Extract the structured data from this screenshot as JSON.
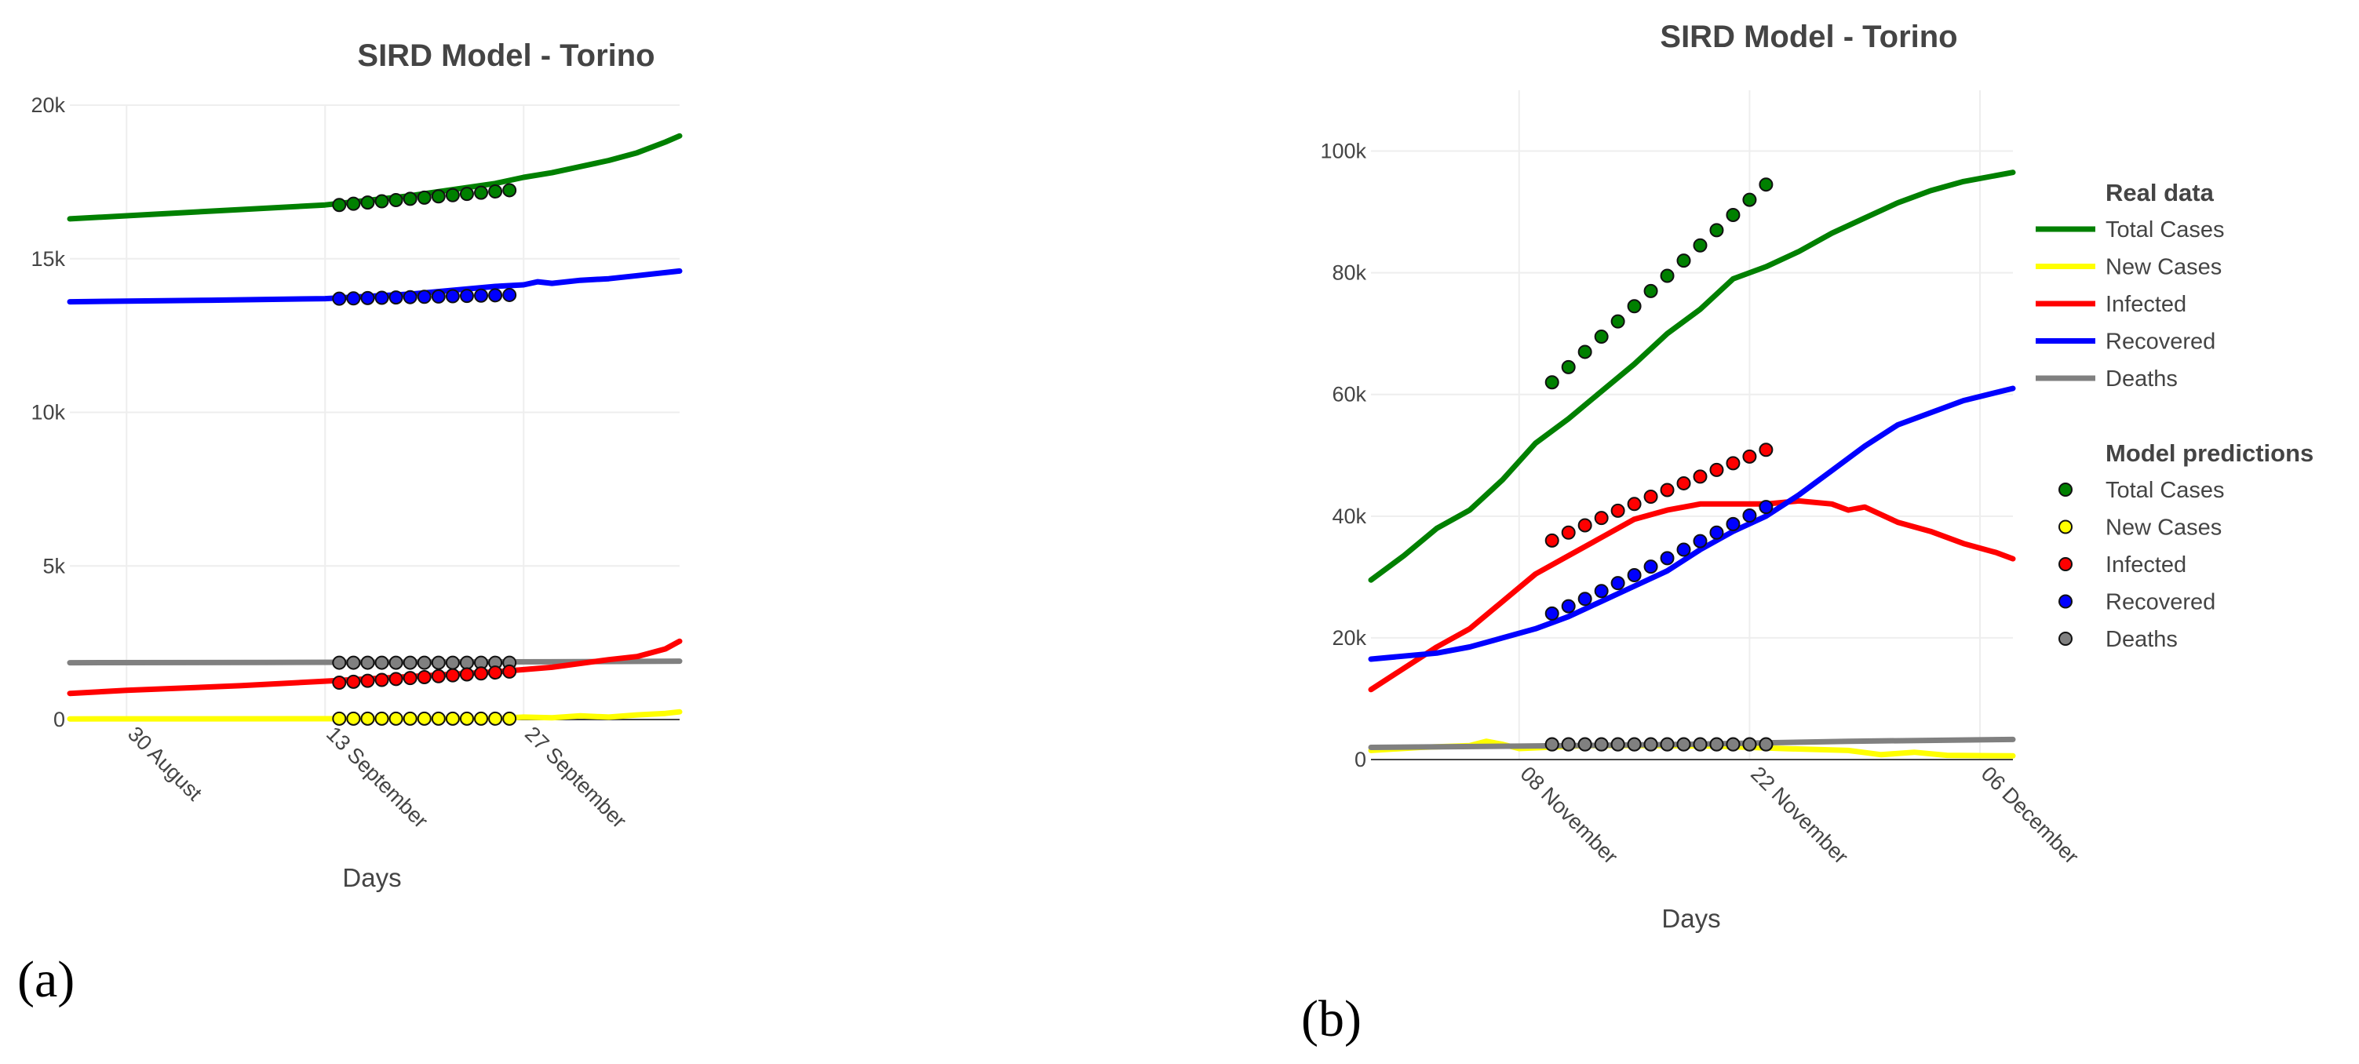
{
  "colors": {
    "total": "#008000",
    "new": "#ffff00",
    "infected": "#ff0000",
    "recovered": "#0000ff",
    "deaths": "#808080"
  },
  "panel_labels": [
    "(a)",
    "(b)"
  ],
  "legend": {
    "real_header": "Real data",
    "real_items": [
      "Total Cases",
      "New Cases",
      "Infected",
      "Recovered",
      "Deaths"
    ],
    "model_header": "Model predictions",
    "model_items": [
      "Total Cases",
      "New Cases",
      "Infected",
      "Recovered",
      "Deaths"
    ]
  },
  "chart_data": [
    {
      "type": "line",
      "title": "SIRD Model - Torino",
      "xlabel": "Days",
      "ylabel": "",
      "x_range_days": [
        -4,
        39
      ],
      "x_ticks": [
        {
          "day": 0,
          "label": "30 August"
        },
        {
          "day": 14,
          "label": "13 September"
        },
        {
          "day": 28,
          "label": "27 September"
        }
      ],
      "ylim": [
        0,
        20000
      ],
      "y_ticks": [
        {
          "value": 0,
          "label": "0"
        },
        {
          "value": 5000,
          "label": "5k"
        },
        {
          "value": 10000,
          "label": "10k"
        },
        {
          "value": 15000,
          "label": "15k"
        },
        {
          "value": 20000,
          "label": "20k"
        }
      ],
      "real_series": [
        {
          "name": "Total Cases",
          "color_key": "total",
          "points": [
            [
              -4,
              16300
            ],
            [
              2,
              16450
            ],
            [
              8,
              16600
            ],
            [
              14,
              16750
            ],
            [
              20,
              17050
            ],
            [
              26,
              17450
            ],
            [
              28,
              17650
            ],
            [
              30,
              17800
            ],
            [
              32,
              18000
            ],
            [
              34,
              18200
            ],
            [
              36,
              18450
            ],
            [
              38,
              18800
            ],
            [
              39,
              19000
            ]
          ]
        },
        {
          "name": "Recovered",
          "color_key": "recovered",
          "points": [
            [
              -4,
              13600
            ],
            [
              6,
              13650
            ],
            [
              14,
              13700
            ],
            [
              20,
              13850
            ],
            [
              26,
              14100
            ],
            [
              28,
              14150
            ],
            [
              29,
              14250
            ],
            [
              30,
              14200
            ],
            [
              32,
              14300
            ],
            [
              34,
              14350
            ],
            [
              36,
              14450
            ],
            [
              39,
              14600
            ]
          ]
        },
        {
          "name": "Deaths",
          "color_key": "deaths",
          "points": [
            [
              -4,
              1850
            ],
            [
              10,
              1860
            ],
            [
              20,
              1870
            ],
            [
              30,
              1880
            ],
            [
              39,
              1900
            ]
          ]
        },
        {
          "name": "Infected",
          "color_key": "infected",
          "points": [
            [
              -4,
              850
            ],
            [
              0,
              950
            ],
            [
              8,
              1100
            ],
            [
              14,
              1250
            ],
            [
              20,
              1400
            ],
            [
              26,
              1550
            ],
            [
              30,
              1700
            ],
            [
              34,
              1950
            ],
            [
              36,
              2050
            ],
            [
              38,
              2300
            ],
            [
              39,
              2550
            ]
          ]
        },
        {
          "name": "New Cases",
          "color_key": "new",
          "points": [
            [
              -4,
              20
            ],
            [
              26,
              30
            ],
            [
              28,
              80
            ],
            [
              30,
              60
            ],
            [
              32,
              120
            ],
            [
              34,
              80
            ],
            [
              36,
              150
            ],
            [
              38,
              200
            ],
            [
              39,
              250
            ]
          ]
        }
      ],
      "model_series": [
        {
          "name": "Total Cases",
          "color_key": "total",
          "x_start": 15,
          "values": [
            16750,
            16790,
            16830,
            16870,
            16910,
            16950,
            16990,
            17030,
            17070,
            17110,
            17150,
            17190,
            17230
          ]
        },
        {
          "name": "Recovered",
          "color_key": "recovered",
          "x_start": 15,
          "values": [
            13700,
            13710,
            13720,
            13730,
            13740,
            13750,
            13760,
            13770,
            13780,
            13790,
            13800,
            13810,
            13820
          ]
        },
        {
          "name": "Deaths",
          "color_key": "deaths",
          "x_start": 15,
          "values": [
            1850,
            1850,
            1850,
            1850,
            1850,
            1850,
            1850,
            1850,
            1850,
            1850,
            1850,
            1850,
            1850
          ]
        },
        {
          "name": "Infected",
          "color_key": "infected",
          "x_start": 15,
          "values": [
            1200,
            1230,
            1260,
            1290,
            1320,
            1350,
            1380,
            1410,
            1440,
            1470,
            1500,
            1530,
            1560
          ]
        },
        {
          "name": "New Cases",
          "color_key": "new",
          "x_start": 15,
          "values": [
            30,
            30,
            30,
            30,
            30,
            30,
            30,
            30,
            30,
            30,
            30,
            30,
            30
          ]
        }
      ]
    },
    {
      "type": "line",
      "title": "SIRD Model - Torino",
      "xlabel": "Days",
      "ylabel": "",
      "x_range_days": [
        -9,
        30
      ],
      "x_ticks": [
        {
          "day": 0,
          "label": "08 November"
        },
        {
          "day": 14,
          "label": "22 November"
        },
        {
          "day": 28,
          "label": "06 December"
        }
      ],
      "ylim": [
        0,
        110000
      ],
      "y_ticks": [
        {
          "value": 0,
          "label": "0"
        },
        {
          "value": 20000,
          "label": "20k"
        },
        {
          "value": 40000,
          "label": "40k"
        },
        {
          "value": 60000,
          "label": "60k"
        },
        {
          "value": 80000,
          "label": "80k"
        },
        {
          "value": 100000,
          "label": "100k"
        }
      ],
      "real_series": [
        {
          "name": "Total Cases",
          "color_key": "total",
          "points": [
            [
              -9,
              29500
            ],
            [
              -7,
              33500
            ],
            [
              -5,
              38000
            ],
            [
              -3,
              41000
            ],
            [
              -1,
              46000
            ],
            [
              1,
              52000
            ],
            [
              3,
              56000
            ],
            [
              5,
              60500
            ],
            [
              7,
              65000
            ],
            [
              9,
              70000
            ],
            [
              11,
              74000
            ],
            [
              13,
              79000
            ],
            [
              15,
              81000
            ],
            [
              17,
              83500
            ],
            [
              19,
              86500
            ],
            [
              21,
              89000
            ],
            [
              23,
              91500
            ],
            [
              25,
              93500
            ],
            [
              27,
              95000
            ],
            [
              30,
              96500
            ]
          ]
        },
        {
          "name": "New Cases",
          "color_key": "new",
          "points": [
            [
              -9,
              1500
            ],
            [
              -6,
              2000
            ],
            [
              -3,
              2300
            ],
            [
              -2,
              3000
            ],
            [
              -1,
              2500
            ],
            [
              0,
              1800
            ],
            [
              4,
              2300
            ],
            [
              8,
              2300
            ],
            [
              12,
              2200
            ],
            [
              16,
              1800
            ],
            [
              20,
              1500
            ],
            [
              22,
              800
            ],
            [
              24,
              1200
            ],
            [
              26,
              700
            ],
            [
              30,
              600
            ]
          ]
        },
        {
          "name": "Infected",
          "color_key": "infected",
          "points": [
            [
              -9,
              11500
            ],
            [
              -7,
              15000
            ],
            [
              -5,
              18500
            ],
            [
              -3,
              21500
            ],
            [
              -1,
              26000
            ],
            [
              1,
              30500
            ],
            [
              3,
              33500
            ],
            [
              5,
              36500
            ],
            [
              7,
              39500
            ],
            [
              9,
              41000
            ],
            [
              11,
              42000
            ],
            [
              13,
              42000
            ],
            [
              15,
              42000
            ],
            [
              17,
              42500
            ],
            [
              19,
              42000
            ],
            [
              20,
              41000
            ],
            [
              21,
              41500
            ],
            [
              23,
              39000
            ],
            [
              25,
              37500
            ],
            [
              27,
              35500
            ],
            [
              29,
              34000
            ],
            [
              30,
              33000
            ]
          ]
        },
        {
          "name": "Recovered",
          "color_key": "recovered",
          "points": [
            [
              -9,
              16500
            ],
            [
              -5,
              17500
            ],
            [
              -3,
              18500
            ],
            [
              -1,
              20000
            ],
            [
              1,
              21500
            ],
            [
              3,
              23500
            ],
            [
              5,
              26000
            ],
            [
              7,
              28500
            ],
            [
              9,
              31000
            ],
            [
              11,
              34500
            ],
            [
              13,
              37500
            ],
            [
              15,
              40000
            ],
            [
              17,
              43500
            ],
            [
              19,
              47500
            ],
            [
              21,
              51500
            ],
            [
              23,
              55000
            ],
            [
              25,
              57000
            ],
            [
              27,
              59000
            ],
            [
              30,
              61000
            ]
          ]
        },
        {
          "name": "Deaths",
          "color_key": "deaths",
          "points": [
            [
              -9,
              2000
            ],
            [
              0,
              2200
            ],
            [
              10,
              2500
            ],
            [
              20,
              3000
            ],
            [
              30,
              3300
            ]
          ]
        }
      ],
      "model_series": [
        {
          "name": "Total Cases",
          "color_key": "total",
          "x_start": 2,
          "values": [
            62000,
            64500,
            67000,
            69500,
            72000,
            74500,
            77000,
            79500,
            82000,
            84500,
            87000,
            89500,
            92000,
            94500
          ]
        },
        {
          "name": "New Cases",
          "color_key": "new",
          "x_start": 2,
          "values": [
            2500,
            2500,
            2500,
            2500,
            2500,
            2500,
            2500,
            2500,
            2500,
            2500,
            2500,
            2500,
            2500,
            2500
          ]
        },
        {
          "name": "Infected",
          "color_key": "infected",
          "x_start": 2,
          "values": [
            36000,
            37300,
            38500,
            39700,
            40900,
            42000,
            43200,
            44300,
            45400,
            46500,
            47600,
            48700,
            49800,
            50900
          ]
        },
        {
          "name": "Recovered",
          "color_key": "recovered",
          "x_start": 2,
          "values": [
            24000,
            25200,
            26400,
            27700,
            29000,
            30300,
            31700,
            33100,
            34500,
            35900,
            37300,
            38700,
            40100,
            41500
          ]
        },
        {
          "name": "Deaths",
          "color_key": "deaths",
          "x_start": 2,
          "values": [
            2500,
            2500,
            2500,
            2500,
            2500,
            2500,
            2500,
            2500,
            2500,
            2500,
            2500,
            2500,
            2500,
            2500
          ]
        }
      ]
    }
  ]
}
